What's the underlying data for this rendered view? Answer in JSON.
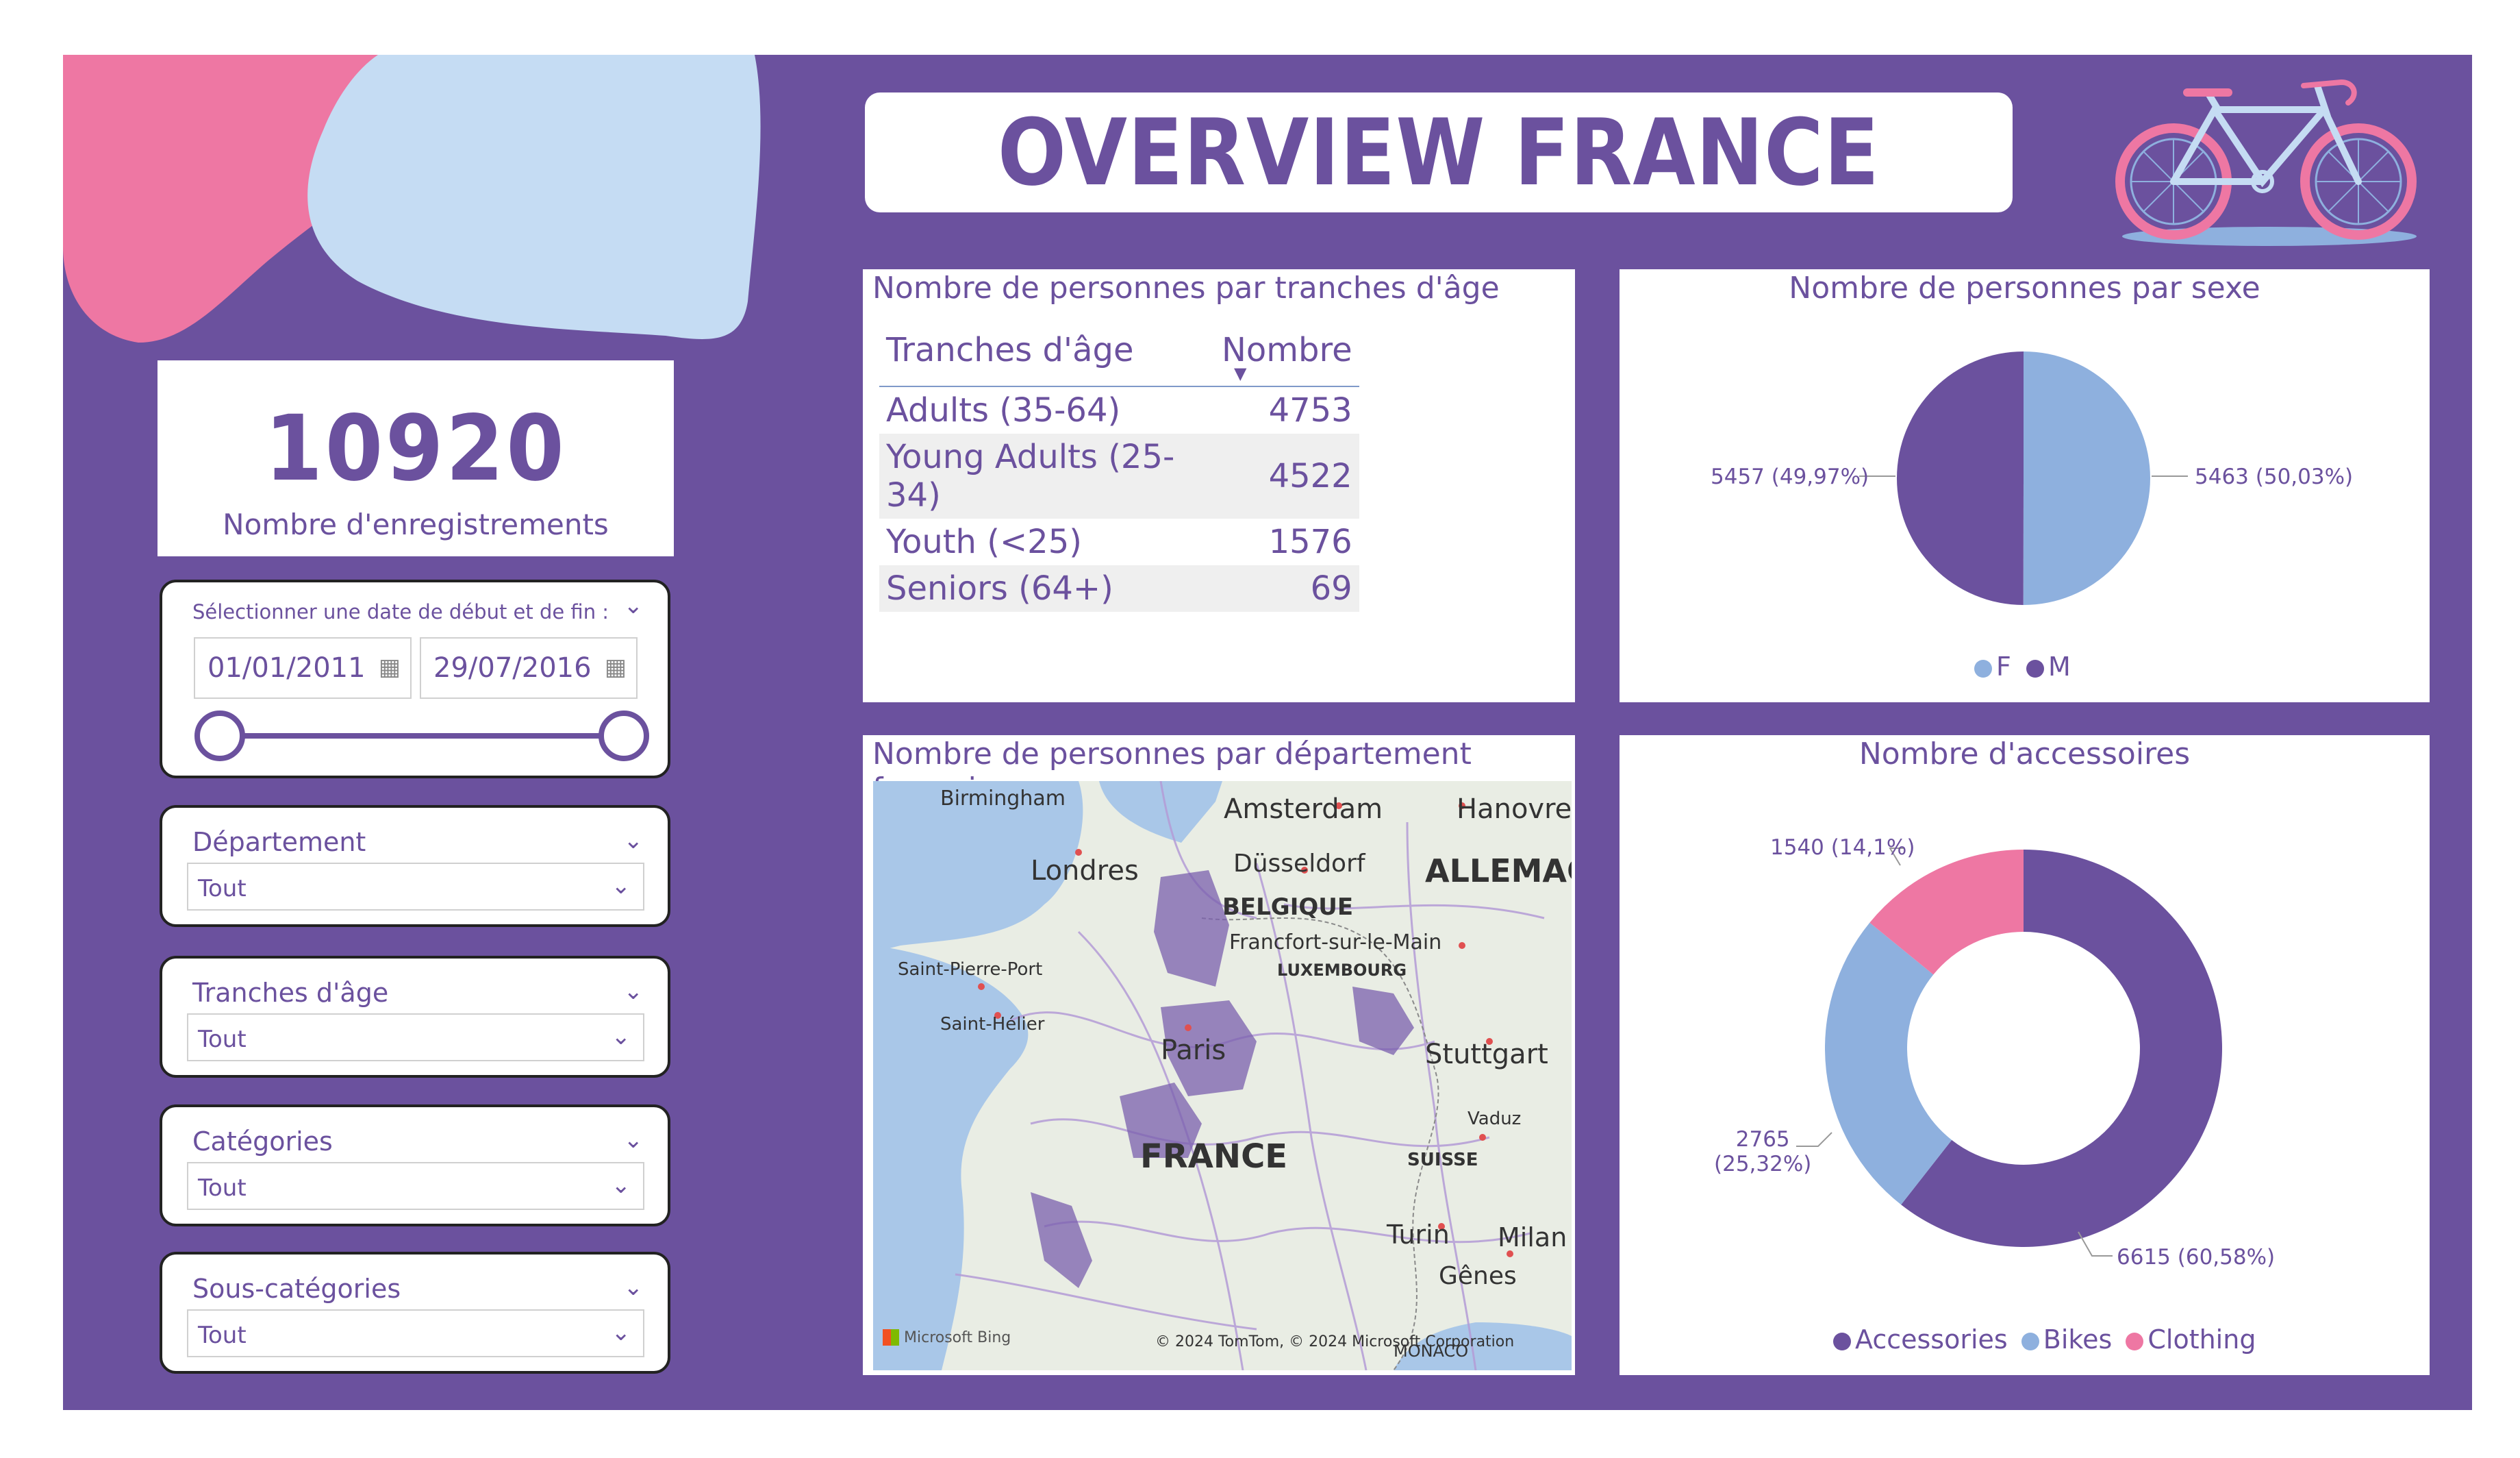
{
  "header": {
    "title": "OVERVIEW FRANCE"
  },
  "kpi": {
    "value": "10920",
    "label": "Nombre d'enregistrements"
  },
  "date_slicer": {
    "title": "Sélectionner une date de début et de fin :",
    "start": "01/01/2011",
    "end": "29/07/2016",
    "range_fraction": [
      0.0,
      1.0
    ]
  },
  "slicers": [
    {
      "title": "Département",
      "value": "Tout"
    },
    {
      "title": "Tranches d'âge",
      "value": "Tout"
    },
    {
      "title": "Catégories",
      "value": "Tout"
    },
    {
      "title": "Sous-catégories",
      "value": "Tout"
    }
  ],
  "age_table": {
    "title": "Nombre de personnes par tranches d'âge",
    "columns": [
      "Tranches d'âge",
      "Nombre"
    ],
    "rows": [
      [
        "Adults (35-64)",
        "4753"
      ],
      [
        "Young Adults (25-34)",
        "4522"
      ],
      [
        "Youth (<25)",
        "1576"
      ],
      [
        "Seniors (64+)",
        "69"
      ]
    ]
  },
  "sex_chart": {
    "title": "Nombre de personnes par sexe",
    "chart_data": {
      "type": "pie",
      "categories": [
        "F",
        "M"
      ],
      "values": [
        5463,
        5457
      ],
      "labels": [
        "5463 (50,03%)",
        "5457 (49,97%)"
      ],
      "colors": [
        "#8eb0de",
        "#6b519e"
      ],
      "legend_position": "bottom-center"
    }
  },
  "map": {
    "title": "Nombre de personnes par département français",
    "labels": {
      "birmingham": "Birmingham",
      "amsterdam": "Amsterdam",
      "hanovre": "Hanovre",
      "londres": "Londres",
      "dusseldorf": "Düsseldorf",
      "allemagne": "ALLEMAG",
      "belgique": "BELGIQUE",
      "francfort": "Francfort-sur-le-Main",
      "luxembourg": "LUXEMBOURG",
      "saint_pierre": "Saint-Pierre-Port",
      "saint_helier": "Saint-Hélier",
      "paris": "Paris",
      "stuttgart": "Stuttgart",
      "vaduz": "Vaduz",
      "france": "FRANCE",
      "suisse": "SUISSE",
      "turin": "Turin",
      "milan": "Milan",
      "geneve": "Gênes",
      "monaco": "MONACO"
    },
    "attribution": "© 2024 TomTom, © 2024 Microsoft Corporation",
    "brand": "Microsoft Bing"
  },
  "accessories_chart": {
    "title": "Nombre d'accessoires",
    "chart_data": {
      "type": "pie",
      "donut": true,
      "categories": [
        "Accessories",
        "Bikes",
        "Clothing"
      ],
      "values": [
        6615,
        2765,
        1540
      ],
      "labels": [
        "6615 (60,58%)",
        "2765\n(25,32%)",
        "1540 (14,1%)"
      ],
      "colors": [
        "#6b519e",
        "#8eb0de",
        "#ee77a3"
      ],
      "legend_position": "bottom-center"
    }
  }
}
